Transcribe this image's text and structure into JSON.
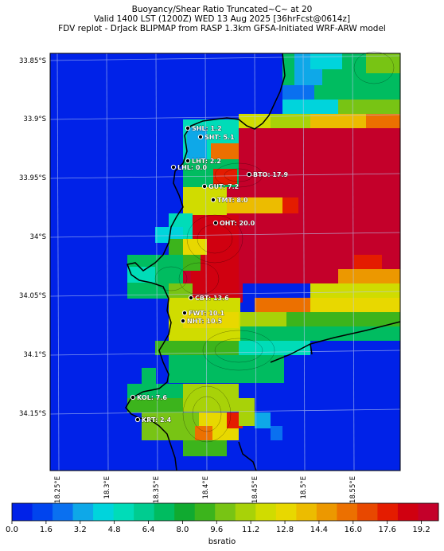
{
  "header": {
    "line1": "Buoyancy/Shear Ratio Truncated~C~    at 20",
    "line2": "Valid 1400 LST (1200Z) WED 13 Aug 2025 [36hrFcst@0614z]",
    "line3": "FDV replot - DrJack BLIPMAP from RASP 1.3km GFSA-Initiated WRF-ARW model"
  },
  "axes": {
    "lat_ticks": [
      "33.85°S",
      "33.9°S",
      "33.95°S",
      "34°S",
      "34.05°S",
      "34.1°S",
      "34.15°S"
    ],
    "lon_ticks": [
      "18.25°E",
      "18.3°E",
      "18.35°E",
      "18.4°E",
      "18.45°E",
      "18.5°E",
      "18.55°E"
    ]
  },
  "colorbar": {
    "title": "bsratio",
    "labels": [
      "0.0",
      "1.6",
      "3.2",
      "4.8",
      "6.4",
      "8.0",
      "9.6",
      "11.2",
      "12.8",
      "14.4",
      "16.0",
      "17.6",
      "19.2"
    ],
    "colors": [
      "#0022e8",
      "#0044ee",
      "#0a70f0",
      "#0ea8e8",
      "#00d4dc",
      "#00dcb8",
      "#00cc90",
      "#00bc60",
      "#10aa30",
      "#3cb41c",
      "#78c414",
      "#a8d208",
      "#d0dc00",
      "#e8d800",
      "#ecbc00",
      "#ec9800",
      "#ec7000",
      "#e84800",
      "#e41c00",
      "#d00010",
      "#c4002a"
    ]
  },
  "stations": [
    {
      "label": "SHL: 1.2"
    },
    {
      "label": "SHT: 5.1"
    },
    {
      "label": "LHT: 2.2"
    },
    {
      "label": "LHL: 0.0"
    },
    {
      "label": "BTO: 17.9"
    },
    {
      "label": "GUT: 7.2"
    },
    {
      "label": "TMT: 8.0"
    },
    {
      "label": "OHT: 20.0"
    },
    {
      "label": "CBT: 13.6"
    },
    {
      "label": "FWT: 10.1"
    },
    {
      "label": "NHT: 10.5"
    },
    {
      "label": "KOL: 7.6"
    },
    {
      "label": "KRT: 2.4"
    }
  ]
}
